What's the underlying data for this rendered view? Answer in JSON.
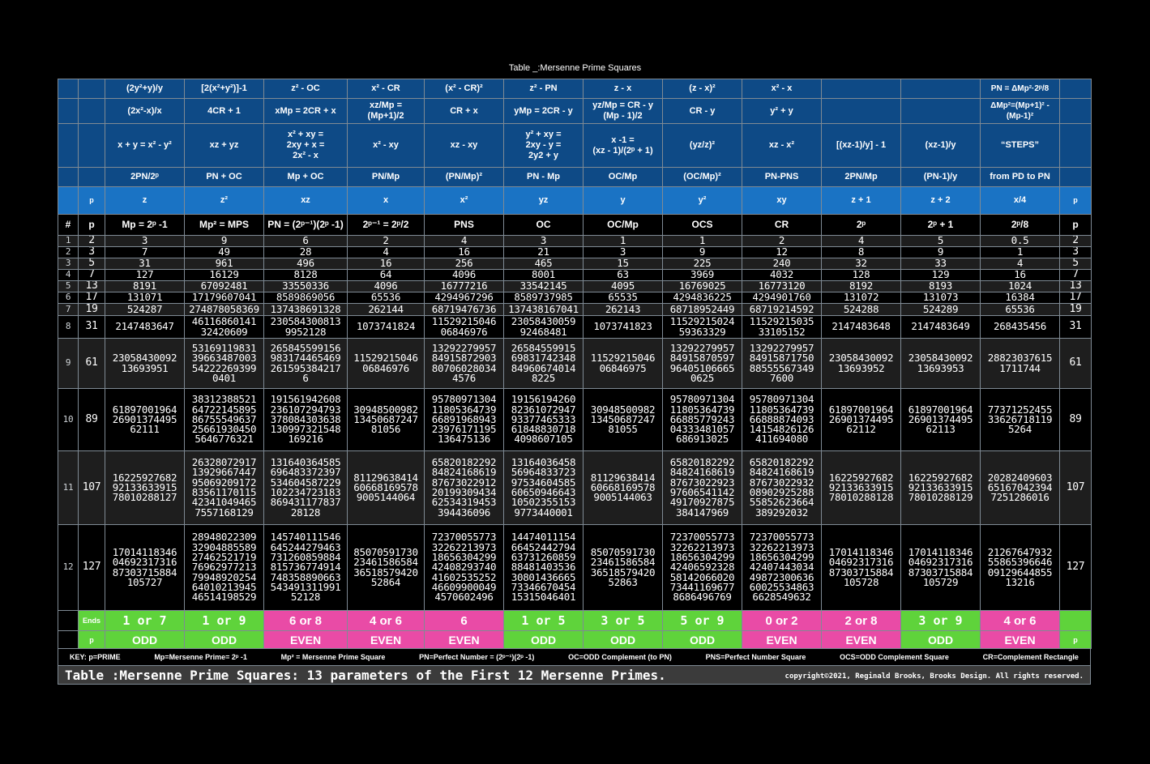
{
  "title": "Table _:Mersenne Prime Squares",
  "header_rows": [
    [
      "",
      "",
      "(2y²+y)/y",
      "[2(x²+y²)]-1",
      "z² - OC",
      "x² - CR",
      "(x² - CR)²",
      "z² - PN",
      "z - x",
      "(z - x)²",
      "x² - x",
      "",
      "",
      "PN = ΔMp²·2ᵖ/8",
      ""
    ],
    [
      "",
      "",
      "(2x²-x)/x",
      "4CR + 1",
      "xMp = 2CR + x",
      "xz/Mp =\n(Mp+1)/2",
      "CR + x",
      "yMp = 2CR - y",
      "yz/Mp = CR - y\n(Mp - 1)/2",
      "CR - y",
      "y² + y",
      "",
      "",
      "ΔMp²=(Mp+1)² -\n(Mp-1)²",
      ""
    ],
    [
      "",
      "",
      "x + y = x² - y²",
      "xz + yz",
      "x² + xy =\n2xy + x =\n2x² - x",
      "x² - xy",
      "xz - xy",
      "y² + xy =\n2xy - y =\n2y2 + y",
      "x -1 =\n(xz - 1)/(2ᵖ + 1)",
      "(yz/z)²",
      "xz - x²",
      "[(xz-1)/y] - 1",
      "(xz-1)/y",
      "“STEPS”",
      ""
    ],
    [
      "",
      "",
      "2PN/2ᵖ",
      "PN + OC",
      "Mp + OC",
      "PN/Mp",
      "(PN/Mp)²",
      "PN - Mp",
      "OC/Mp",
      "(OC/Mp)²",
      "PN-PNS",
      "2PN/Mp",
      "(PN-1)/y",
      "from PD to PN",
      ""
    ],
    [
      "",
      "p",
      "z",
      "z²",
      "xz",
      "x",
      "x²",
      "yz",
      "y",
      "y²",
      "xy",
      "z + 1",
      "z + 2",
      "x/4",
      "p"
    ],
    [
      "#",
      "p",
      "Mp = 2ᵖ -1",
      "Mp² = MPS",
      "PN = (2ᵖ⁻¹)(2ᵖ -1)",
      "2ᵖ⁻¹ = 2ᵖ/2",
      "PNS",
      "OC",
      "OC/Mp",
      "OCS",
      "CR",
      "2ᵖ",
      "2ᵖ + 1",
      "2ᵖ/8",
      "p"
    ]
  ],
  "rows": [
    [
      "1",
      "2",
      "3",
      "9",
      "6",
      "2",
      "4",
      "3",
      "1",
      "1",
      "2",
      "4",
      "5",
      "0.5",
      "2"
    ],
    [
      "2",
      "3",
      "7",
      "49",
      "28",
      "4",
      "16",
      "21",
      "3",
      "9",
      "12",
      "8",
      "9",
      "1",
      "3"
    ],
    [
      "3",
      "5",
      "31",
      "961",
      "496",
      "16",
      "256",
      "465",
      "15",
      "225",
      "240",
      "32",
      "33",
      "4",
      "5"
    ],
    [
      "4",
      "7",
      "127",
      "16129",
      "8128",
      "64",
      "4096",
      "8001",
      "63",
      "3969",
      "4032",
      "128",
      "129",
      "16",
      "7"
    ],
    [
      "5",
      "13",
      "8191",
      "67092481",
      "33550336",
      "4096",
      "16777216",
      "33542145",
      "4095",
      "16769025",
      "16773120",
      "8192",
      "8193",
      "1024",
      "13"
    ],
    [
      "6",
      "17",
      "131071",
      "17179607041",
      "8589869056",
      "65536",
      "4294967296",
      "8589737985",
      "65535",
      "4294836225",
      "4294901760",
      "131072",
      "131073",
      "16384",
      "17"
    ],
    [
      "7",
      "19",
      "524287",
      "274878058369",
      "137438691328",
      "262144",
      "68719476736",
      "137438167041",
      "262143",
      "68718952449",
      "68719214592",
      "524288",
      "524289",
      "65536",
      "19"
    ],
    [
      "8",
      "31",
      "2147483647",
      "46116860141\n32420609",
      "230584300813\n9952128",
      "1073741824",
      "11529215046\n06846976",
      "23058430059\n92468481",
      "1073741823",
      "11529215024\n59363329",
      "11529215035\n33105152",
      "2147483648",
      "2147483649",
      "268435456",
      "31"
    ],
    [
      "9",
      "61",
      "23058430092\n13693951",
      "53169119831\n39663487003\n54222269399\n0401",
      "265845599156\n983174465469\n261595384217\n6",
      "11529215046\n06846976",
      "13292279957\n84915872903\n80706028034\n4576",
      "26584559915\n69831742348\n84960674014\n8225",
      "11529215046\n06846975",
      "13292279957\n84915870597\n96405106665\n0625",
      "13292279957\n84915871750\n88555567349\n7600",
      "23058430092\n13693952",
      "23058430092\n13693953",
      "28823037615\n1711744",
      "61"
    ],
    [
      "10",
      "89",
      "61897001964\n26901374495\n62111",
      "38312388521\n64722145895\n86755549637\n25661930450\n5646776321",
      "191561942608\n236107294793\n378084303638\n130997321548\n169216",
      "30948500982\n13450687247\n81056",
      "95780971304\n11805364739\n66891968943\n23976171195\n136475136",
      "19156194260\n82361072947\n93377465333\n61848830718\n4098607105",
      "30948500982\n13450687247\n81055",
      "95780971304\n11805364739\n66885779243\n04333481057\n686913025",
      "95780971304\n11805364739\n66888874093\n14154826126\n411694080",
      "61897001964\n26901374495\n62112",
      "61897001964\n26901374495\n62113",
      "77371252455\n33626718119\n5264",
      "89"
    ],
    [
      "11",
      "107",
      "16225927682\n92133633915\n78010288127",
      "26328072917\n13929667447\n95069209172\n83561170115\n42341049465\n7557168129",
      "131640364585\n696483372397\n534604587229\n102234723183\n869431177837\n28128",
      "81129638414\n60668169578\n9005144064",
      "65820182292\n84824168619\n87673022912\n20199309434\n62534319453\n394436096",
      "13164036458\n56964833723\n97534604585\n60650946643\n10502355153\n9773440001",
      "81129638414\n60668169578\n9005144063",
      "65820182292\n84824168619\n87673022923\n97606541142\n49170927875\n384147969",
      "65820182292\n84824168619\n87673022932\n08902925288\n55852623664\n389292032",
      "16225927682\n92133633915\n78010288128",
      "16225927682\n92133633915\n78010288129",
      "20282409603\n65167042394\n7251286016",
      "107"
    ],
    [
      "12",
      "127",
      "17014118346\n04692317316\n87303715884\n105727",
      "28948022309\n32904885589\n27462521719\n76962977213\n79948920254\n64010213945\n46514198529",
      "145740111546\n645244279463\n731260859884\n815736774914\n748358890663\n543491311991\n52128",
      "85070591730\n23461586584\n36518579420\n52864",
      "72370055773\n32262213973\n18656304299\n42408293740\n41602535252\n46609900049\n4570602496",
      "14474011154\n66452442794\n63731260859\n88481403536\n30801436665\n73346670454\n15315046401",
      "85070591730\n23461586584\n36518579420\n52863",
      "72370055773\n32262213973\n18656304299\n42406592328\n58142066020\n73441169677\n8686496769",
      "72370055773\n32262213973\n18656304299\n42407443034\n49872300636\n60025534863\n6628549632",
      "17014118346\n04692317316\n87303715884\n105728",
      "17014118346\n04692317316\n87303715884\n105729",
      "21267647932\n55865396646\n09129644855\n13216",
      "127"
    ]
  ],
  "ends_label": "Ends",
  "ends": [
    "1 or 7",
    "1 or 9",
    "6 or 8",
    "4 or 6",
    "6",
    "1 or 5",
    "3 or 5",
    "5 or 9",
    "0 or 2",
    "2 or 8",
    "3 or 9",
    "4 or 6"
  ],
  "ends_colors": [
    "green",
    "green",
    "pink",
    "pink",
    "pink",
    "green",
    "green",
    "green",
    "pink",
    "pink",
    "green",
    "pink"
  ],
  "parity_label": "p",
  "parity": [
    "ODD",
    "ODD",
    "EVEN",
    "EVEN",
    "EVEN",
    "ODD",
    "ODD",
    "ODD",
    "EVEN",
    "EVEN",
    "ODD",
    "EVEN"
  ],
  "parity_last": "p",
  "key": [
    "KEY:  p=PRIME",
    "Mp=Mersenne Prime= 2ᵖ -1",
    "Mp² = Mersenne Prime Square",
    "PN=Perfect Number = (2ᵖ⁻¹)(2ᵖ -1)",
    "OC=ODD Complement (to PN)",
    "PNS=Perfect Number Square",
    "OCS=ODD Complement Square",
    "CR=Complement Rectangle"
  ],
  "caption": "Table  :Mersenne Prime Squares: 13 parameters of the First 12 Mersenne Primes.",
  "copyright": "copyright©2021, Reginald Brooks, Brooks Design. All rights reserved.",
  "colors": {
    "dark_blue": "#0e4a86",
    "light_blue": "#1a73c4",
    "green": "#5fd33b",
    "pink": "#e94ba6",
    "row_gray": "#1e1e1e"
  }
}
